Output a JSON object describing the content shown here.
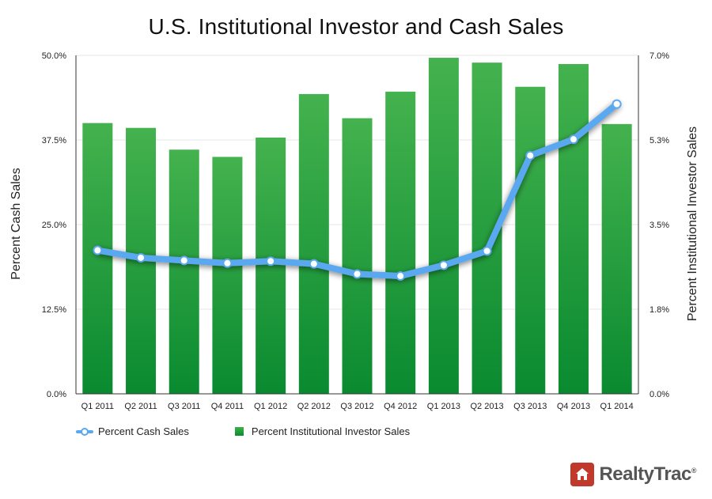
{
  "chart_data": {
    "type": "bar+line",
    "title": "U.S. Institutional Investor and Cash Sales",
    "categories": [
      "Q1 2011",
      "Q2 2011",
      "Q3 2011",
      "Q4 2011",
      "Q1 2012",
      "Q2 2012",
      "Q3 2012",
      "Q4 2012",
      "Q1 2013",
      "Q2 2013",
      "Q3 2013",
      "Q4 2013",
      "Q1 2014"
    ],
    "left_axis": {
      "label": "Percent Cash Sales",
      "ylim": [
        0,
        50
      ],
      "ticks": [
        "0.0%",
        "12.5%",
        "25.0%",
        "37.5%",
        "50.0%"
      ]
    },
    "right_axis": {
      "label": "Percent Institutional Investor Sales",
      "ylim": [
        0,
        7
      ],
      "ticks": [
        "0.0%",
        "1.8%",
        "3.5%",
        "5.3%",
        "7.0%"
      ]
    },
    "series": [
      {
        "name": "Percent Institutional Investor Sales",
        "type": "bar",
        "axis": "right",
        "color": "#1f9a3a",
        "values": [
          5.6,
          5.5,
          5.05,
          4.9,
          5.3,
          6.2,
          5.7,
          6.25,
          6.95,
          6.85,
          6.35,
          6.82,
          5.58
        ]
      },
      {
        "name": "Percent Cash Sales",
        "type": "line",
        "axis": "left",
        "color": "#5aa8f0",
        "values": [
          21.2,
          20.1,
          19.7,
          19.3,
          19.6,
          19.2,
          17.7,
          17.4,
          19.0,
          21.1,
          35.2,
          37.6,
          42.8
        ]
      }
    ],
    "legend": [
      "Percent Cash Sales",
      "Percent Institutional Investor Sales"
    ]
  },
  "brand": {
    "name": "RealtyTrac",
    "mark": "®"
  }
}
